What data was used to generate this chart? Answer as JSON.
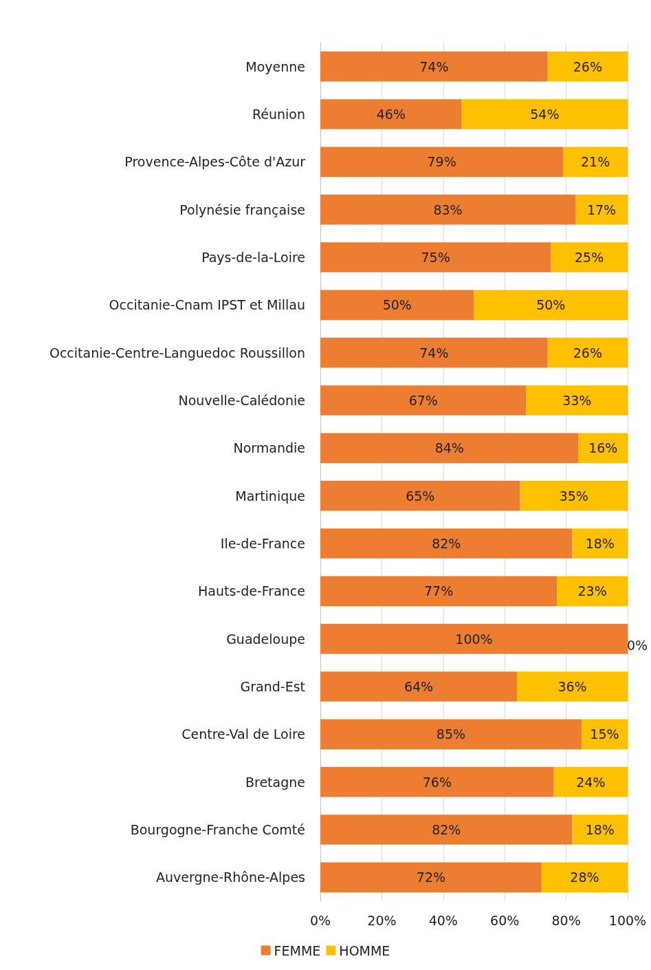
{
  "chart_data": {
    "type": "bar",
    "orientation": "horizontal",
    "stacked": true,
    "categories": [
      "Moyenne",
      "Réunion",
      "Provence-Alpes-Côte d'Azur",
      "Polynésie française",
      "Pays-de-la-Loire",
      "Occitanie-Cnam IPST et Millau",
      "Occitanie-Centre-Languedoc Roussillon",
      "Nouvelle-Calédonie",
      "Normandie",
      "Martinique",
      "Ile-de-France",
      "Hauts-de-France",
      "Guadeloupe",
      "Grand-Est",
      "Centre-Val de Loire",
      "Bretagne",
      "Bourgogne-Franche Comté",
      "Auvergne-Rhône-Alpes"
    ],
    "series": [
      {
        "name": "FEMME",
        "color": "#ed7d31",
        "values": [
          74,
          46,
          79,
          83,
          75,
          50,
          74,
          67,
          84,
          65,
          82,
          77,
          100,
          64,
          85,
          76,
          82,
          72
        ],
        "value_labels": [
          "74%",
          "46%",
          "79%",
          "83%",
          "75%",
          "50%",
          "74%",
          "67%",
          "84%",
          "65%",
          "82%",
          "77%",
          "100%",
          "64%",
          "85%",
          "76%",
          "82%",
          "72%"
        ]
      },
      {
        "name": "HOMME",
        "color": "#ffc000",
        "values": [
          26,
          54,
          21,
          17,
          25,
          50,
          26,
          33,
          16,
          35,
          18,
          23,
          0,
          36,
          15,
          24,
          18,
          28
        ],
        "value_labels": [
          "26%",
          "54%",
          "21%",
          "17%",
          "25%",
          "50%",
          "26%",
          "33%",
          "16%",
          "35%",
          "18%",
          "23%",
          "0%",
          "36%",
          "15%",
          "24%",
          "18%",
          "28%"
        ]
      }
    ],
    "xlim": [
      0,
      100
    ],
    "xticks": [
      {
        "value": 0,
        "label": "0%"
      },
      {
        "value": 20,
        "label": "20%"
      },
      {
        "value": 40,
        "label": "40%"
      },
      {
        "value": 60,
        "label": "60%"
      },
      {
        "value": 80,
        "label": "80%"
      },
      {
        "value": 100,
        "label": "100%"
      }
    ],
    "grid": "x",
    "legend": "bottom"
  }
}
